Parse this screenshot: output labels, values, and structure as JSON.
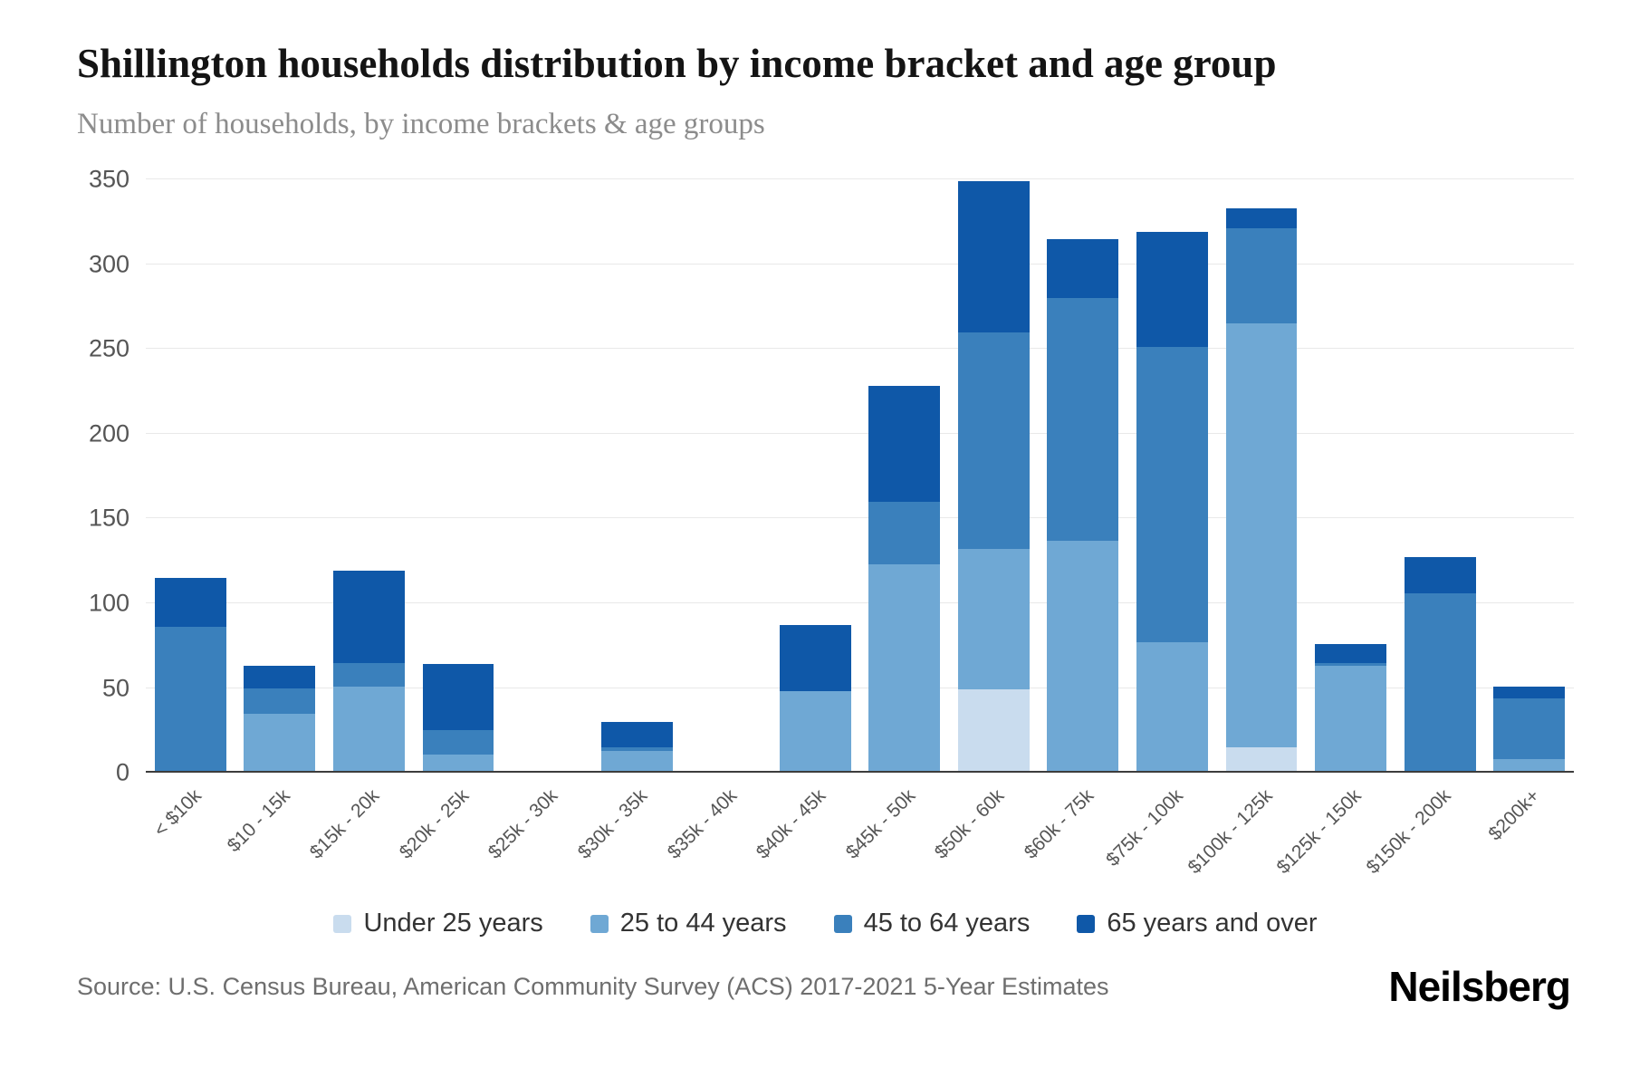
{
  "header": {
    "title": "Shillington households distribution by income bracket and age group",
    "subtitle": "Number of households, by income brackets & age groups"
  },
  "chart_data": {
    "type": "bar",
    "stacked": true,
    "title": "Shillington households distribution by income bracket and age group",
    "xlabel": "",
    "ylabel": "",
    "ylim": [
      0,
      350
    ],
    "yticks": [
      0,
      50,
      100,
      150,
      200,
      250,
      300,
      350
    ],
    "grid": true,
    "legend_position": "bottom",
    "categories": [
      "< $10k",
      "$10 - 15k",
      "$15k - 20k",
      "$20k - 25k",
      "$25k - 30k",
      "$30k - 35k",
      "$35k - 40k",
      "$40k - 45k",
      "$45k - 50k",
      "$50k - 60k",
      "$60k - 75k",
      "$75k - 100k",
      "$100k - 125k",
      "$125k - 150k",
      "$150k - 200k",
      "$200k+"
    ],
    "series": [
      {
        "name": "Under 25 years",
        "color": "#c9dcee",
        "values": [
          0,
          0,
          0,
          0,
          0,
          0,
          0,
          0,
          0,
          49,
          0,
          0,
          15,
          0,
          0,
          0
        ]
      },
      {
        "name": "25 to 44 years",
        "color": "#6fa8d4",
        "values": [
          0,
          35,
          51,
          11,
          0,
          13,
          0,
          48,
          123,
          83,
          137,
          77,
          250,
          63,
          0,
          8
        ]
      },
      {
        "name": "45 to 64 years",
        "color": "#3a80bc",
        "values": [
          86,
          15,
          14,
          14,
          0,
          2,
          0,
          0,
          37,
          128,
          143,
          174,
          56,
          2,
          106,
          36
        ]
      },
      {
        "name": "65 years and over",
        "color": "#0f58a8",
        "values": [
          29,
          13,
          54,
          39,
          0,
          15,
          0,
          39,
          68,
          89,
          35,
          68,
          12,
          11,
          21,
          7
        ]
      }
    ]
  },
  "footer": {
    "source": "Source: U.S. Census Bureau, American Community Survey (ACS) 2017-2021 5-Year Estimates",
    "brand": "Neilsberg"
  }
}
